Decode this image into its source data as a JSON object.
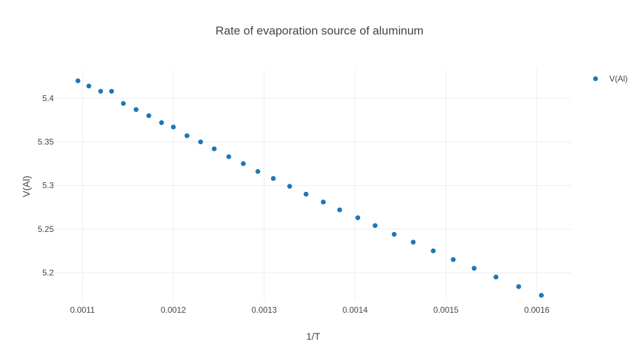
{
  "chart_data": {
    "type": "scatter",
    "title": "Rate of evaporation source of aluminum",
    "xlabel": "1/T",
    "ylabel": "V(Al)",
    "xlim": [
      0.00107,
      0.001638
    ],
    "ylim": [
      5.1675,
      5.4335
    ],
    "grid": true,
    "legend_position": "top-right",
    "marker_color": "#1f77b4",
    "x_ticks": [
      {
        "value": 0.0011,
        "label": "0.0011"
      },
      {
        "value": 0.0012,
        "label": "0.0012"
      },
      {
        "value": 0.0013,
        "label": "0.0013"
      },
      {
        "value": 0.0014,
        "label": "0.0014"
      },
      {
        "value": 0.0015,
        "label": "0.0015"
      },
      {
        "value": 0.0016,
        "label": "0.0016"
      }
    ],
    "y_ticks": [
      {
        "value": 5.2,
        "label": "5.2"
      },
      {
        "value": 5.25,
        "label": "5.25"
      },
      {
        "value": 5.3,
        "label": "5.3"
      },
      {
        "value": 5.35,
        "label": "5.35"
      },
      {
        "value": 5.4,
        "label": "5.4"
      }
    ],
    "series": [
      {
        "name": "V(Al)",
        "x": [
          0.001095,
          0.001107,
          0.00112,
          0.001132,
          0.001145,
          0.001159,
          0.001173,
          0.001187,
          0.0012,
          0.001215,
          0.00123,
          0.001245,
          0.001261,
          0.001277,
          0.001293,
          0.00131,
          0.001328,
          0.001346,
          0.001365,
          0.001383,
          0.001403,
          0.001422,
          0.001443,
          0.001464,
          0.001486,
          0.001508,
          0.001531,
          0.001555,
          0.00158,
          0.001605
        ],
        "y": [
          5.42,
          5.414,
          5.408,
          5.408,
          5.394,
          5.387,
          5.38,
          5.372,
          5.367,
          5.357,
          5.35,
          5.342,
          5.333,
          5.325,
          5.316,
          5.308,
          5.299,
          5.29,
          5.281,
          5.272,
          5.263,
          5.254,
          5.244,
          5.235,
          5.225,
          5.215,
          5.205,
          5.195,
          5.184,
          5.174
        ]
      }
    ]
  }
}
